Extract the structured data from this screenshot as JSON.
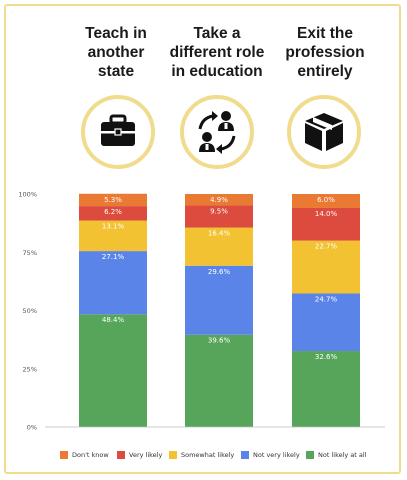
{
  "columns": [
    {
      "title_lines": [
        "Teach in",
        "another",
        "state"
      ],
      "icon": "briefcase-icon"
    },
    {
      "title_lines": [
        "Take a",
        "different role",
        "in education"
      ],
      "icon": "people-exchange-icon"
    },
    {
      "title_lines": [
        "Exit the",
        "profession",
        "entirely"
      ],
      "icon": "box-icon"
    }
  ],
  "chart_data": {
    "type": "bar",
    "stacked": true,
    "categories": [
      "Teach in another state",
      "Take a different role in education",
      "Exit the profession entirely"
    ],
    "ylim": [
      0,
      100
    ],
    "yticks": [
      "0%",
      "25%",
      "50%",
      "75%",
      "100%"
    ],
    "ytick_values": [
      0,
      25,
      50,
      75,
      100
    ],
    "series": [
      {
        "name": "Not likely at all",
        "color": "#57a55a",
        "values": [
          48.4,
          39.6,
          32.6
        ],
        "labels": [
          "48.4%",
          "39.6%",
          "32.6%"
        ]
      },
      {
        "name": "Not very likely",
        "color": "#5b84e8",
        "values": [
          27.1,
          29.6,
          24.7
        ],
        "labels": [
          "27.1%",
          "29.6%",
          "24.7%"
        ]
      },
      {
        "name": "Somewhat likely",
        "color": "#f2c232",
        "values": [
          13.1,
          16.4,
          22.7
        ],
        "labels": [
          "13.1%",
          "16.4%",
          "22.7%"
        ]
      },
      {
        "name": "Very likely",
        "color": "#dc4b3d",
        "values": [
          6.2,
          9.5,
          14.0
        ],
        "labels": [
          "6.2%",
          "9.5%",
          "14.0%"
        ]
      },
      {
        "name": "Don't know",
        "color": "#ea7a33",
        "values": [
          5.3,
          4.9,
          6.0
        ],
        "labels": [
          "5.3%",
          "4.9%",
          "6.0%"
        ]
      }
    ],
    "legend_order": [
      "Don't know",
      "Very likely",
      "Somewhat likely",
      "Not very likely",
      "Not likely at all"
    ],
    "legend_placement": "bottom",
    "grid": false
  }
}
